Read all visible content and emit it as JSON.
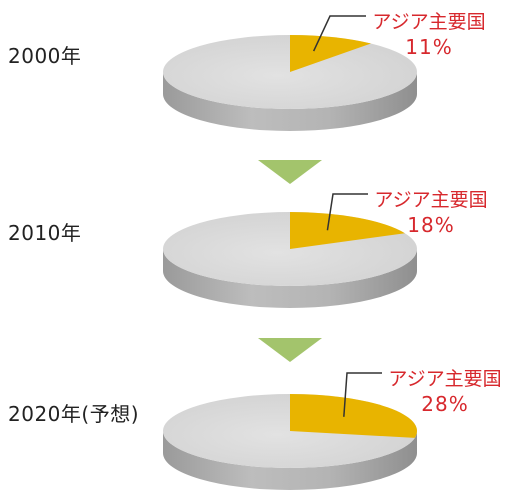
{
  "chart_data": [
    {
      "type": "pie",
      "title": "2000年",
      "categories": [
        "アジア主要国",
        ""
      ],
      "values": [
        11,
        89
      ],
      "labels": [
        {
          "name": "アジア主要国",
          "value_text": "11%"
        }
      ],
      "colors": {
        "highlight": "#e8b400",
        "rest": "#d8d8d8"
      }
    },
    {
      "type": "pie",
      "title": "2010年",
      "categories": [
        "アジア主要国",
        ""
      ],
      "values": [
        18,
        82
      ],
      "labels": [
        {
          "name": "アジア主要国",
          "value_text": "18%"
        }
      ],
      "colors": {
        "highlight": "#e8b400",
        "rest": "#d8d8d8"
      }
    },
    {
      "type": "pie",
      "title": "2020年(予想)",
      "categories": [
        "アジア主要国",
        ""
      ],
      "values": [
        28,
        72
      ],
      "labels": [
        {
          "name": "アジア主要国",
          "value_text": "28%"
        }
      ],
      "colors": {
        "highlight": "#e8b400",
        "rest": "#d8d8d8"
      }
    }
  ],
  "style": {
    "label_color": "#d7282d",
    "arrow_color": "#a3c46c",
    "side_color": "#a9a9a9"
  }
}
